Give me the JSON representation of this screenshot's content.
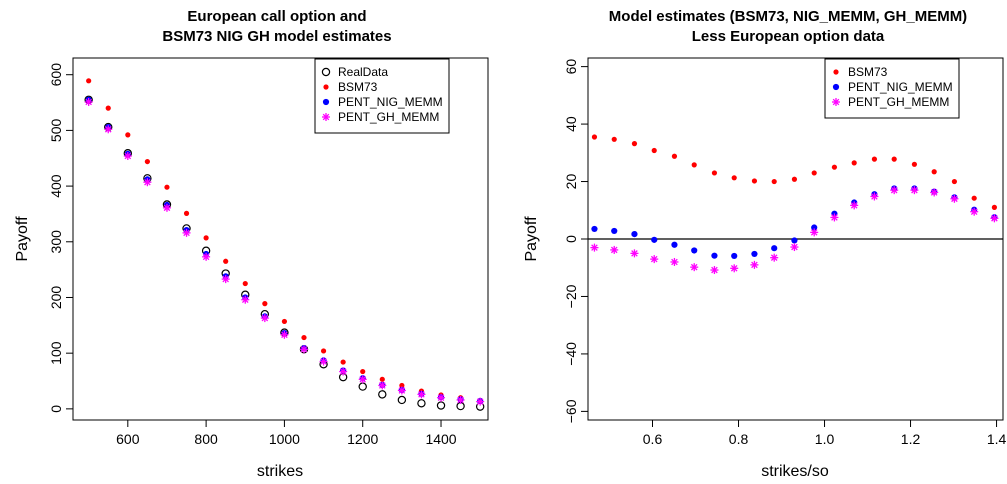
{
  "chart_data": [
    {
      "type": "scatter",
      "title_lines": [
        "European call option and",
        "BSM73 NIG GH model estimates"
      ],
      "xlabel": "strikes",
      "ylabel": "Payoff",
      "xlim": [
        460,
        1520
      ],
      "ylim": [
        -20,
        630
      ],
      "xticks": [
        600,
        800,
        1000,
        1200,
        1400
      ],
      "yticks": [
        0,
        100,
        200,
        300,
        400,
        500,
        600
      ],
      "legend_position": "top-right",
      "x": [
        500,
        550,
        600,
        650,
        700,
        750,
        800,
        850,
        900,
        950,
        1000,
        1050,
        1100,
        1150,
        1200,
        1250,
        1300,
        1350,
        1400,
        1450,
        1500
      ],
      "series": [
        {
          "name": "RealData",
          "marker": "open-circle",
          "color": "#000000",
          "values": [
            555,
            506,
            459,
            414,
            367,
            324,
            284,
            243,
            205,
            170,
            137,
            107,
            80,
            57,
            40,
            26,
            16,
            10,
            6,
            5,
            4
          ]
        },
        {
          "name": "BSM73",
          "marker": "dot",
          "color": "#ff0000",
          "values": [
            589,
            540,
            492,
            444,
            398,
            351,
            307,
            265,
            225,
            189,
            157,
            128,
            104,
            84,
            67,
            53,
            42,
            32,
            25,
            20,
            15
          ]
        },
        {
          "name": "PENT_NIG_MEMM",
          "marker": "dot",
          "color": "#0000ff",
          "values": [
            555,
            506,
            458,
            412,
            366,
            321,
            278,
            238,
            200,
            166,
            136,
            109,
            87,
            69,
            55,
            43,
            34,
            27,
            21,
            17,
            14
          ]
        },
        {
          "name": "PENT_GH_MEMM",
          "marker": "star",
          "color": "#ff00ff",
          "values": [
            551,
            502,
            454,
            407,
            361,
            316,
            273,
            233,
            196,
            163,
            133,
            107,
            85,
            67,
            53,
            42,
            33,
            26,
            20,
            16,
            13
          ]
        }
      ]
    },
    {
      "type": "scatter",
      "title_lines": [
        "Model estimates (BSM73, NIG_MEMM, GH_MEMM)",
        "Less  European option data"
      ],
      "xlabel": "strikes/so",
      "ylabel": "Payoff",
      "xlim": [
        0.45,
        1.415
      ],
      "ylim": [
        -63,
        63
      ],
      "xticks": [
        0.6,
        0.8,
        1.0,
        1.2,
        1.4
      ],
      "xtick_labels": [
        "0.6",
        "0.8",
        "1.0",
        "1.2",
        "1.4"
      ],
      "yticks": [
        -60,
        -40,
        -20,
        0,
        20,
        40,
        60
      ],
      "ytick_labels": [
        "−60",
        "−40",
        "−20",
        "0",
        "20",
        "40",
        "60"
      ],
      "zero_line": true,
      "legend_position": "top-right",
      "x": [
        0.465,
        0.511,
        0.558,
        0.604,
        0.651,
        0.697,
        0.744,
        0.79,
        0.837,
        0.883,
        0.93,
        0.976,
        1.023,
        1.069,
        1.116,
        1.162,
        1.209,
        1.255,
        1.302,
        1.348,
        1.395
      ],
      "series": [
        {
          "name": "BSM73",
          "marker": "dot",
          "color": "#ff0000",
          "values": [
            35.5,
            34.7,
            33.2,
            30.8,
            28.8,
            25.8,
            23.0,
            21.3,
            20.2,
            20.0,
            20.8,
            23.0,
            25.0,
            26.5,
            27.8,
            27.8,
            26.0,
            23.4,
            20.0,
            14.2,
            11.0
          ]
        },
        {
          "name": "PENT_NIG_MEMM",
          "marker": "dot",
          "color": "#0000ff",
          "values": [
            3.5,
            2.8,
            1.7,
            -0.3,
            -2.0,
            -4.0,
            -5.8,
            -5.9,
            -5.2,
            -3.2,
            -0.5,
            4.0,
            8.8,
            12.7,
            15.6,
            17.6,
            17.6,
            16.5,
            14.5,
            10.2,
            7.6
          ]
        },
        {
          "name": "PENT_GH_MEMM",
          "marker": "star",
          "color": "#ff00ff",
          "values": [
            -3.0,
            -3.8,
            -5.0,
            -7.0,
            -8.0,
            -9.8,
            -10.8,
            -10.2,
            -9.0,
            -6.5,
            -2.8,
            2.3,
            7.5,
            11.7,
            14.8,
            17.0,
            17.0,
            16.2,
            14.0,
            9.5,
            7.2
          ]
        }
      ]
    }
  ]
}
